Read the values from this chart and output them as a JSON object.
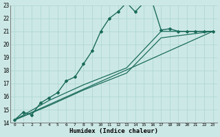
{
  "xlabel": "Humidex (Indice chaleur)",
  "bg_color": "#cce8e6",
  "line_color": "#1a6b5a",
  "grid_color": "#aad4d0",
  "xlim": [
    -0.5,
    23.5
  ],
  "ylim": [
    14,
    23
  ],
  "yticks": [
    14,
    15,
    16,
    17,
    18,
    19,
    20,
    21,
    22,
    23
  ],
  "xticks": [
    0,
    1,
    2,
    3,
    4,
    5,
    6,
    7,
    8,
    9,
    10,
    11,
    12,
    13,
    14,
    15,
    16,
    17,
    18,
    19,
    20,
    21,
    22,
    23
  ],
  "series_main": {
    "x": [
      0,
      1,
      2,
      3,
      4,
      5,
      6,
      7,
      8,
      9,
      10,
      11,
      12,
      13,
      14,
      15,
      16,
      17,
      18,
      19,
      20,
      21,
      22,
      23
    ],
    "y": [
      14.2,
      14.8,
      14.6,
      15.5,
      15.9,
      16.3,
      17.2,
      17.5,
      18.5,
      19.5,
      21.0,
      22.0,
      22.5,
      23.2,
      22.5,
      23.2,
      23.2,
      21.1,
      21.2,
      21.0,
      21.0,
      21.0,
      21.0,
      21.0
    ]
  },
  "series_line1": {
    "x": [
      0,
      23
    ],
    "y": [
      14.2,
      21.0
    ]
  },
  "series_line2": {
    "x": [
      0,
      4,
      8,
      13,
      17,
      23
    ],
    "y": [
      14.2,
      15.3,
      16.5,
      17.8,
      20.5,
      21.0
    ]
  },
  "series_line3": {
    "x": [
      0,
      4,
      8,
      13,
      17,
      23
    ],
    "y": [
      14.2,
      15.7,
      16.9,
      18.2,
      21.0,
      21.0
    ]
  }
}
